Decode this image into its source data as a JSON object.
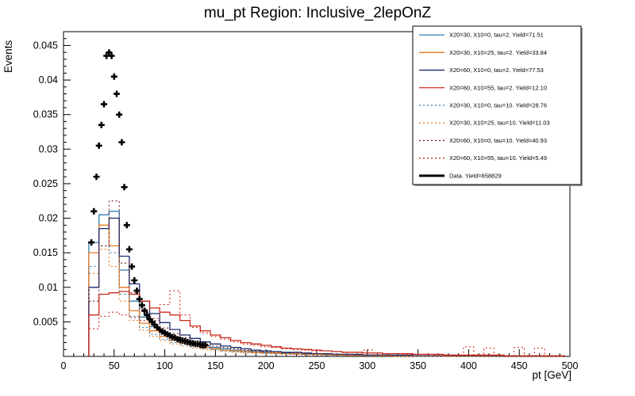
{
  "chart_data": {
    "type": "line",
    "title": "mu_pt Region: Inclusive_2lepOnZ",
    "xlabel": "pt [GeV]",
    "ylabel": "Events",
    "xlim": [
      0,
      500
    ],
    "ylim": [
      0,
      0.047
    ],
    "x_major_ticks": [
      0,
      50,
      100,
      150,
      200,
      250,
      300,
      350,
      400,
      450,
      500
    ],
    "y_major_ticks": [
      0.005,
      0.01,
      0.015,
      0.02,
      0.025,
      0.03,
      0.035,
      0.04,
      0.045
    ],
    "x_minor_step": 10,
    "y_minor_step": 0.001,
    "grid": "off",
    "legend_position": "top-right",
    "bin_start": 25,
    "bin_width": 10,
    "series": [
      {
        "label": "X20=30, X10=0, tau=2. Yield=71.51",
        "color": "#2e7eb3",
        "style": "solid",
        "values": [
          0.0165,
          0.0205,
          0.021,
          0.0125,
          0.008,
          0.0057,
          0.0043,
          0.0034,
          0.0027,
          0.0022,
          0.0018,
          0.0015,
          0.0013,
          0.0011,
          0.0009,
          0.0008,
          0.0007,
          0.0006,
          0.0005,
          0.0005,
          0.0004,
          0.0004,
          0.0003,
          0.0003,
          0.0003,
          0.0002,
          0.0002,
          0.0002,
          0.0002,
          0.0002,
          0.0001,
          0.0001,
          0.0001,
          0.0001,
          0.0001,
          0.0001,
          0.0001,
          0.0001,
          0.0001,
          0.0001,
          0,
          0,
          0,
          0,
          0,
          0,
          0
        ]
      },
      {
        "label": "X20=30, X10=25, tau=2. Yield=33.84",
        "color": "#e8791e",
        "style": "solid",
        "values": [
          0.015,
          0.019,
          0.016,
          0.01,
          0.0066,
          0.0048,
          0.0037,
          0.0029,
          0.0023,
          0.0019,
          0.0016,
          0.0013,
          0.0011,
          0.0009,
          0.0008,
          0.0007,
          0.0006,
          0.0005,
          0.0005,
          0.0004,
          0.0004,
          0.0003,
          0.0003,
          0.0003,
          0.0002,
          0.0002,
          0.0002,
          0.0002,
          0.0001,
          0.0001,
          0.0001,
          0.0001,
          0.0001,
          0.0001,
          0.0001,
          0,
          0,
          0,
          0,
          0,
          0,
          0,
          0,
          0,
          0,
          0,
          0
        ]
      },
      {
        "label": "X20=60, X10=0, tau=2. Yield=77.53",
        "color": "#1b2a6b",
        "style": "solid",
        "values": [
          0.01,
          0.0185,
          0.02,
          0.0145,
          0.0105,
          0.008,
          0.0062,
          0.0049,
          0.0039,
          0.0031,
          0.0026,
          0.0021,
          0.0018,
          0.0015,
          0.0013,
          0.0011,
          0.0009,
          0.0008,
          0.0007,
          0.0006,
          0.0006,
          0.0005,
          0.0004,
          0.0004,
          0.0003,
          0.0003,
          0.0003,
          0.0002,
          0.0002,
          0.0002,
          0.0002,
          0.0002,
          0.0001,
          0.0001,
          0.0001,
          0.0001,
          0.0001,
          0.0001,
          0.0001,
          0.0001,
          0.0001,
          0,
          0,
          0,
          0,
          0,
          0
        ]
      },
      {
        "label": "X20=60, X10=55, tau=2. Yield=12.10",
        "color": "#cc2a1e",
        "style": "solid",
        "values": [
          0.006,
          0.009,
          0.0092,
          0.0094,
          0.009,
          0.008,
          0.007,
          0.0064,
          0.006,
          0.0052,
          0.0044,
          0.0037,
          0.0031,
          0.0027,
          0.0023,
          0.002,
          0.0018,
          0.0016,
          0.0014,
          0.0012,
          0.0011,
          0.001,
          0.0009,
          0.0008,
          0.0007,
          0.0006,
          0.0006,
          0.0005,
          0.0005,
          0.0004,
          0.0004,
          0.0004,
          0.0003,
          0.0003,
          0.0003,
          0.0002,
          0.0002,
          0.0002,
          0.0002,
          0.0002,
          0.0002,
          0.0001,
          0.0001,
          0.0001,
          0.0001,
          0.0001,
          0.0001
        ]
      },
      {
        "label": "X20=30, X10=0, tau=10. Yield=28.76",
        "color": "#2e7eb3",
        "style": "dotted",
        "values": [
          0.013,
          0.016,
          0.015,
          0.009,
          0.0058,
          0.0042,
          0.0032,
          0.0025,
          0.002,
          0.0017,
          0.0014,
          0.0012,
          0.001,
          0.0008,
          0.0007,
          0.0006,
          0.0005,
          0.0005,
          0.0004,
          0.0004,
          0.0003,
          0.0003,
          0.0002,
          0.0002,
          0.0002,
          0.0002,
          0.0001,
          0.0001,
          0.0001,
          0.0001,
          0.0001,
          0.0001,
          0,
          0,
          0,
          0,
          0,
          0,
          0,
          0,
          0,
          0,
          0,
          0,
          0,
          0,
          0
        ]
      },
      {
        "label": "X20=30, X10=25, tau=10. Yield=11.03",
        "color": "#e8791e",
        "style": "dotted",
        "values": [
          0.012,
          0.0155,
          0.013,
          0.008,
          0.0052,
          0.0038,
          0.0029,
          0.0023,
          0.0018,
          0.0015,
          0.0012,
          0.001,
          0.0009,
          0.0007,
          0.0006,
          0.0005,
          0.0005,
          0.0004,
          0.0004,
          0.0003,
          0.0003,
          0.0002,
          0.0002,
          0.0002,
          0.0002,
          0.0001,
          0.0001,
          0.0001,
          0.0001,
          0.0001,
          0,
          0,
          0,
          0,
          0,
          0,
          0,
          0,
          0,
          0,
          0,
          0,
          0,
          0,
          0,
          0,
          0
        ]
      },
      {
        "label": "X20=60, X10=0, tau=10. Yield=40.93",
        "color": "#7b1f2b",
        "style": "dotted",
        "values": [
          0.008,
          0.016,
          0.0225,
          0.0135,
          0.0092,
          0.0068,
          0.0052,
          0.0041,
          0.0033,
          0.0027,
          0.0022,
          0.0018,
          0.0015,
          0.0013,
          0.0011,
          0.0009,
          0.0008,
          0.0007,
          0.0006,
          0.0005,
          0.0005,
          0.0004,
          0.0004,
          0.0003,
          0.0003,
          0.0003,
          0.0002,
          0.0002,
          0.0002,
          0.0002,
          0.0001,
          0.0001,
          0.0001,
          0.0001,
          0.0001,
          0.0001,
          0,
          0,
          0,
          0,
          0,
          0,
          0,
          0,
          0,
          0,
          0
        ]
      },
      {
        "label": "X20=60, X10=55, tau=10. Yield=5.49",
        "color": "#cc2a1e",
        "style": "dotted",
        "values": [
          0.004,
          0.0058,
          0.0064,
          0.006,
          0.0056,
          0.0052,
          0.0055,
          0.0075,
          0.0095,
          0.006,
          0.0042,
          0.0034,
          0.0029,
          0.0025,
          0.0021,
          0.0018,
          0.0016,
          0.0014,
          0.0013,
          0.0011,
          0.001,
          0.0009,
          0.0008,
          0.0008,
          0.0007,
          0.0006,
          0.0006,
          0.0009,
          0.0005,
          0.0004,
          0.0004,
          0.0003,
          0.0003,
          0.0003,
          0.0002,
          0.0002,
          0.0002,
          0.0014,
          0.0002,
          0.0012,
          0.0002,
          0.0001,
          0.0013,
          0.0001,
          0.0012,
          0.0001,
          0.0001
        ]
      }
    ],
    "data_points": {
      "label": "Data. Yield=658829",
      "color": "#000000",
      "x": [
        27.5,
        30,
        32.5,
        35,
        37.5,
        40,
        42.5,
        45,
        47.5,
        50,
        52.5,
        55,
        57.5,
        60,
        62.5,
        65,
        67.5,
        70,
        72.5,
        75,
        77.5,
        80,
        82.5,
        85,
        87.5,
        90,
        92.5,
        95,
        97.5,
        100,
        102.5,
        105,
        107.5,
        110,
        112.5,
        115,
        117.5,
        120,
        122.5,
        125,
        127.5,
        130,
        132.5,
        135,
        137.5,
        140
      ],
      "y": [
        0.0165,
        0.021,
        0.026,
        0.0305,
        0.0335,
        0.0365,
        0.0435,
        0.044,
        0.0435,
        0.0405,
        0.038,
        0.035,
        0.031,
        0.0245,
        0.019,
        0.0155,
        0.013,
        0.011,
        0.0095,
        0.0083,
        0.0074,
        0.0066,
        0.006,
        0.0054,
        0.005,
        0.0046,
        0.0042,
        0.0039,
        0.0036,
        0.0034,
        0.0032,
        0.003,
        0.0028,
        0.0027,
        0.0025,
        0.0024,
        0.0023,
        0.0022,
        0.0021,
        0.002,
        0.0019,
        0.0018,
        0.0018,
        0.0017,
        0.0016,
        0.0016
      ]
    }
  }
}
